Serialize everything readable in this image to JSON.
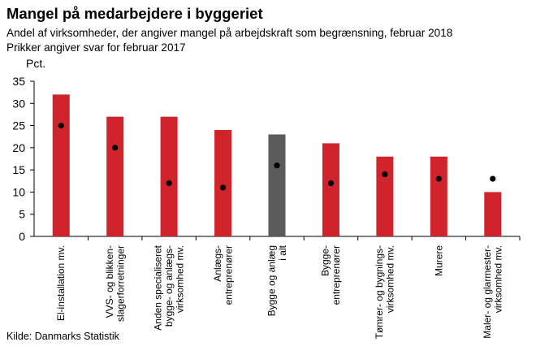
{
  "header": {
    "title": "Mangel på medarbejdere i byggeriet",
    "subtitle_line1": "Andel af virksomheder, der angiver mangel på arbejdskraft som begrænsning, februar 2018",
    "subtitle_line2": "Prikker angiver svar for februar 2017"
  },
  "footer": {
    "source": "Kilde: Danmarks Statistik"
  },
  "colors": {
    "bar_default": "#d0232b",
    "bar_highlight": "#5b5b5b",
    "dot": "#000000",
    "axis": "#000000"
  },
  "chart_data": {
    "type": "bar",
    "ylabel": "Pct.",
    "ylim": [
      0,
      35
    ],
    "yticks": [
      0,
      5,
      10,
      15,
      20,
      25,
      30,
      35
    ],
    "grid": false,
    "categories": [
      [
        "El-installation mv."
      ],
      [
        "VVS- og blikken-",
        "slagerforretninger"
      ],
      [
        "Anden specialiseret",
        "bygge- og anlægs-",
        "virksomhed mv."
      ],
      [
        "Anlægs-",
        "entreprenører"
      ],
      [
        "Bygge og anlæg",
        "i alt"
      ],
      [
        "Bygge-",
        "entreprenører"
      ],
      [
        "Tømrer- og bygnings-",
        "virksomhed mv."
      ],
      [
        "Murere"
      ],
      [
        "Maler- og glarmester-",
        "virksomhed mv."
      ]
    ],
    "series": [
      {
        "name": "februar 2018",
        "mark": "bar",
        "values": [
          32,
          27,
          27,
          24,
          23,
          21,
          18,
          18,
          10
        ]
      },
      {
        "name": "februar 2017",
        "mark": "dot",
        "values": [
          25,
          20,
          12,
          11,
          16,
          12,
          14,
          13,
          13
        ]
      }
    ],
    "highlight_index": 4
  }
}
